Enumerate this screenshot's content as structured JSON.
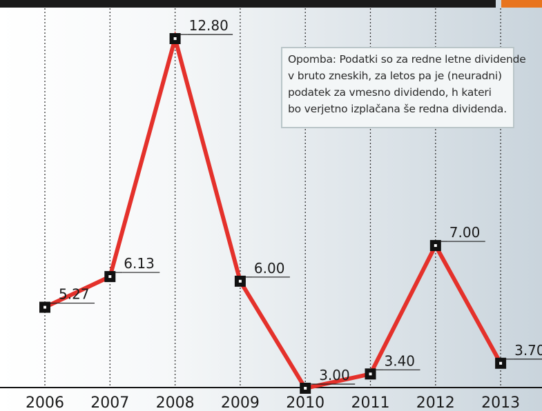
{
  "chart_data": {
    "type": "line",
    "categories": [
      "2006",
      "2007",
      "2008",
      "2009",
      "2010",
      "2011",
      "2012",
      "2013"
    ],
    "series": [
      {
        "values": [
          5.27,
          6.13,
          12.8,
          6.0,
          3.0,
          3.4,
          7.0,
          3.7
        ],
        "color": "#e4312b"
      }
    ],
    "data_labels": [
      "5.27",
      "6.13",
      "12.80",
      "6.00",
      "3.00",
      "3.40",
      "7.00",
      "3.70"
    ],
    "ylim": [
      3.0,
      12.8
    ],
    "grid": "vertical dotted lines",
    "title": "",
    "xlabel": "",
    "ylabel": ""
  },
  "note": {
    "lines": [
      "Opomba: Podatki so za redne letne dividende",
      "v bruto zneskih, za letos pa je (neuradni)",
      "podatek za vmesno dividendo, h kateri",
      "bo verjetno izplačana še redna dividenda."
    ]
  },
  "colors": {
    "line": "#e4312b",
    "marker": "#111111",
    "top_bar": "#1a1a1a",
    "accent": "#e8741e",
    "background_gradient_end": "#cad5dd"
  }
}
